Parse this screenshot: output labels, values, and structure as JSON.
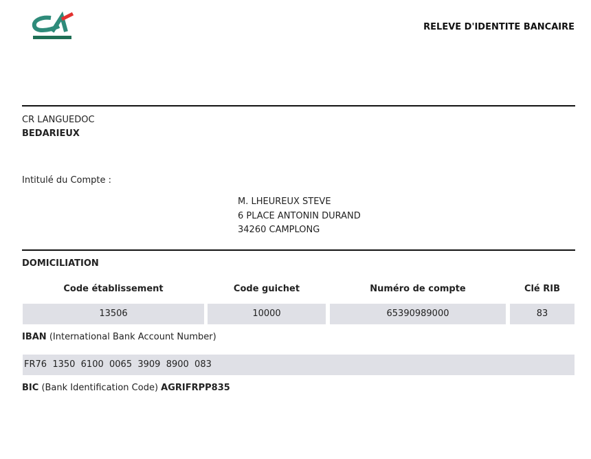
{
  "header": {
    "logo_text": "CA",
    "title": "RELEVE D'IDENTITE BANCAIRE"
  },
  "bank": {
    "caisse": "CR LANGUEDOC",
    "agence": "BEDARIEUX"
  },
  "account_holder": {
    "label": "Intitulé du Compte :",
    "lines": [
      "M. LHEUREUX STEVE",
      "6 PLACE ANTONIN DURAND",
      "34260 CAMPLONG"
    ]
  },
  "domiciliation": {
    "label": "DOMICILIATION",
    "columns": [
      "Code établissement",
      "Code guichet",
      "Numéro de compte",
      "Clé RIB"
    ],
    "values": [
      "13506",
      "10000",
      "65390989000",
      "83"
    ]
  },
  "iban": {
    "label": "IBAN",
    "description": "(International Bank Account Number)",
    "value": "FR76  1350  6100  0065  3909  8900  083"
  },
  "bic": {
    "label": "BIC",
    "description": "(Bank Identification Code)",
    "value": "AGRIFRPP835"
  },
  "colors": {
    "logo_green": "#2e8b7a",
    "logo_dark_green": "#1f6f55",
    "logo_red": "#e2312f",
    "cell_bg": "#dfe0e6"
  }
}
